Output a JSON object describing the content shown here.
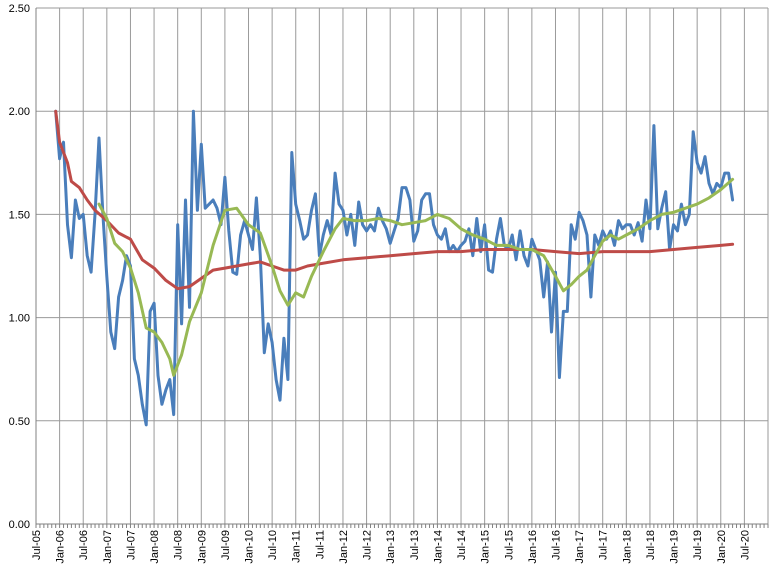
{
  "chart_data": {
    "type": "line",
    "title": "",
    "xlabel": "",
    "ylabel": "",
    "ylim": [
      0,
      2.5
    ],
    "grid": {
      "vertical": true,
      "horizontal": true
    },
    "legend": "none",
    "y_ticks": [
      "0.00",
      "0.50",
      "1.00",
      "1.50",
      "2.00",
      "2.50"
    ],
    "x_range": [
      "Jul-05",
      "Jan-21"
    ],
    "x_ticks": [
      "Jul-05",
      "Jan-06",
      "Jul-06",
      "Jan-07",
      "Jul-07",
      "Jan-08",
      "Jul-08",
      "Jan-09",
      "Jul-09",
      "Jan-10",
      "Jul-10",
      "Jan-11",
      "Jul-11",
      "Jan-12",
      "Jul-12",
      "Jan-13",
      "Jul-13",
      "Jan-14",
      "Jul-14",
      "Jan-15",
      "Jul-15",
      "Jan-16",
      "Jul-16",
      "Jan-17",
      "Jul-17",
      "Jan-18",
      "Jul-18",
      "Jan-19",
      "Jul-19",
      "Jan-20",
      "Jul-20"
    ],
    "series": [
      {
        "color": "#4a7ebb",
        "points": [
          [
            "Dec-05",
            2.0
          ],
          [
            "Jan-06",
            1.77
          ],
          [
            "Feb-06",
            1.85
          ],
          [
            "Mar-06",
            1.45
          ],
          [
            "Apr-06",
            1.29
          ],
          [
            "May-06",
            1.57
          ],
          [
            "Jun-06",
            1.48
          ],
          [
            "Jul-06",
            1.5
          ],
          [
            "Aug-06",
            1.3
          ],
          [
            "Sep-06",
            1.22
          ],
          [
            "Oct-06",
            1.5
          ],
          [
            "Nov-06",
            1.87
          ],
          [
            "Dec-06",
            1.5
          ],
          [
            "Jan-07",
            1.2
          ],
          [
            "Feb-07",
            0.93
          ],
          [
            "Mar-07",
            0.85
          ],
          [
            "Apr-07",
            1.1
          ],
          [
            "May-07",
            1.18
          ],
          [
            "Jun-07",
            1.3
          ],
          [
            "Jul-07",
            1.25
          ],
          [
            "Aug-07",
            0.8
          ],
          [
            "Sep-07",
            0.72
          ],
          [
            "Oct-07",
            0.58
          ],
          [
            "Nov-07",
            0.48
          ],
          [
            "Dec-07",
            1.03
          ],
          [
            "Jan-08",
            1.07
          ],
          [
            "Feb-08",
            0.72
          ],
          [
            "Mar-08",
            0.58
          ],
          [
            "Apr-08",
            0.65
          ],
          [
            "May-08",
            0.7
          ],
          [
            "Jun-08",
            0.53
          ],
          [
            "Jul-08",
            1.45
          ],
          [
            "Aug-08",
            0.97
          ],
          [
            "Sep-08",
            1.57
          ],
          [
            "Oct-08",
            1.05
          ],
          [
            "Nov-08",
            2.0
          ],
          [
            "Dec-08",
            1.52
          ],
          [
            "Jan-09",
            1.84
          ],
          [
            "Feb-09",
            1.53
          ],
          [
            "Mar-09",
            1.55
          ],
          [
            "Apr-09",
            1.57
          ],
          [
            "May-09",
            1.53
          ],
          [
            "Jun-09",
            1.45
          ],
          [
            "Jul-09",
            1.68
          ],
          [
            "Aug-09",
            1.42
          ],
          [
            "Sep-09",
            1.22
          ],
          [
            "Oct-09",
            1.21
          ],
          [
            "Nov-09",
            1.4
          ],
          [
            "Dec-09",
            1.47
          ],
          [
            "Jan-10",
            1.4
          ],
          [
            "Feb-10",
            1.33
          ],
          [
            "Mar-10",
            1.58
          ],
          [
            "Apr-10",
            1.3
          ],
          [
            "May-10",
            0.83
          ],
          [
            "Jun-10",
            0.97
          ],
          [
            "Jul-10",
            0.88
          ],
          [
            "Aug-10",
            0.7
          ],
          [
            "Sep-10",
            0.6
          ],
          [
            "Oct-10",
            0.9
          ],
          [
            "Nov-10",
            0.7
          ],
          [
            "Dec-10",
            1.8
          ],
          [
            "Jan-11",
            1.55
          ],
          [
            "Feb-11",
            1.47
          ],
          [
            "Mar-11",
            1.38
          ],
          [
            "Apr-11",
            1.4
          ],
          [
            "May-11",
            1.52
          ],
          [
            "Jun-11",
            1.6
          ],
          [
            "Jul-11",
            1.3
          ],
          [
            "Aug-11",
            1.4
          ],
          [
            "Sep-11",
            1.47
          ],
          [
            "Oct-11",
            1.4
          ],
          [
            "Nov-11",
            1.7
          ],
          [
            "Dec-11",
            1.55
          ],
          [
            "Jan-12",
            1.52
          ],
          [
            "Feb-12",
            1.4
          ],
          [
            "Mar-12",
            1.5
          ],
          [
            "Apr-12",
            1.35
          ],
          [
            "May-12",
            1.56
          ],
          [
            "Jun-12",
            1.45
          ],
          [
            "Jul-12",
            1.42
          ],
          [
            "Aug-12",
            1.45
          ],
          [
            "Sep-12",
            1.42
          ],
          [
            "Oct-12",
            1.53
          ],
          [
            "Nov-12",
            1.47
          ],
          [
            "Dec-12",
            1.43
          ],
          [
            "Jan-13",
            1.36
          ],
          [
            "Feb-13",
            1.42
          ],
          [
            "Mar-13",
            1.48
          ],
          [
            "Apr-13",
            1.63
          ],
          [
            "May-13",
            1.63
          ],
          [
            "Jun-13",
            1.57
          ],
          [
            "Jul-13",
            1.37
          ],
          [
            "Aug-13",
            1.42
          ],
          [
            "Sep-13",
            1.57
          ],
          [
            "Oct-13",
            1.6
          ],
          [
            "Nov-13",
            1.6
          ],
          [
            "Dec-13",
            1.45
          ],
          [
            "Jan-14",
            1.4
          ],
          [
            "Feb-14",
            1.38
          ],
          [
            "Mar-14",
            1.43
          ],
          [
            "Apr-14",
            1.32
          ],
          [
            "May-14",
            1.35
          ],
          [
            "Jun-14",
            1.32
          ],
          [
            "Jul-14",
            1.35
          ],
          [
            "Aug-14",
            1.37
          ],
          [
            "Sep-14",
            1.43
          ],
          [
            "Oct-14",
            1.3
          ],
          [
            "Nov-14",
            1.48
          ],
          [
            "Dec-14",
            1.32
          ],
          [
            "Jan-15",
            1.45
          ],
          [
            "Feb-15",
            1.23
          ],
          [
            "Mar-15",
            1.22
          ],
          [
            "Apr-15",
            1.38
          ],
          [
            "May-15",
            1.48
          ],
          [
            "Jun-15",
            1.35
          ],
          [
            "Jul-15",
            1.33
          ],
          [
            "Aug-15",
            1.4
          ],
          [
            "Sep-15",
            1.28
          ],
          [
            "Oct-15",
            1.42
          ],
          [
            "Nov-15",
            1.3
          ],
          [
            "Dec-15",
            1.25
          ],
          [
            "Jan-16",
            1.38
          ],
          [
            "Feb-16",
            1.33
          ],
          [
            "Mar-16",
            1.28
          ],
          [
            "Apr-16",
            1.1
          ],
          [
            "May-16",
            1.27
          ],
          [
            "Jun-16",
            0.93
          ],
          [
            "Jul-16",
            1.22
          ],
          [
            "Aug-16",
            0.71
          ],
          [
            "Sep-16",
            1.03
          ],
          [
            "Oct-16",
            1.03
          ],
          [
            "Nov-16",
            1.45
          ],
          [
            "Dec-16",
            1.38
          ],
          [
            "Jan-17",
            1.51
          ],
          [
            "Feb-17",
            1.47
          ],
          [
            "Mar-17",
            1.4
          ],
          [
            "Apr-17",
            1.1
          ],
          [
            "May-17",
            1.4
          ],
          [
            "Jun-17",
            1.35
          ],
          [
            "Jul-17",
            1.42
          ],
          [
            "Aug-17",
            1.38
          ],
          [
            "Sep-17",
            1.42
          ],
          [
            "Oct-17",
            1.35
          ],
          [
            "Nov-17",
            1.47
          ],
          [
            "Dec-17",
            1.43
          ],
          [
            "Jan-18",
            1.45
          ],
          [
            "Feb-18",
            1.45
          ],
          [
            "Mar-18",
            1.4
          ],
          [
            "Apr-18",
            1.46
          ],
          [
            "May-18",
            1.37
          ],
          [
            "Jun-18",
            1.57
          ],
          [
            "Jul-18",
            1.43
          ],
          [
            "Aug-18",
            1.93
          ],
          [
            "Sep-18",
            1.43
          ],
          [
            "Oct-18",
            1.53
          ],
          [
            "Nov-18",
            1.61
          ],
          [
            "Dec-18",
            1.33
          ],
          [
            "Jan-19",
            1.45
          ],
          [
            "Feb-19",
            1.42
          ],
          [
            "Mar-19",
            1.55
          ],
          [
            "Apr-19",
            1.45
          ],
          [
            "May-19",
            1.5
          ],
          [
            "Jun-19",
            1.9
          ],
          [
            "Jul-19",
            1.75
          ],
          [
            "Aug-19",
            1.7
          ],
          [
            "Sep-19",
            1.78
          ],
          [
            "Oct-19",
            1.65
          ],
          [
            "Nov-19",
            1.6
          ],
          [
            "Dec-19",
            1.65
          ],
          [
            "Jan-20",
            1.63
          ],
          [
            "Feb-20",
            1.7
          ],
          [
            "Mar-20",
            1.7
          ],
          [
            "Apr-20",
            1.57
          ]
        ]
      },
      {
        "color": "#be4b48",
        "points": [
          [
            "Dec-05",
            2.0
          ],
          [
            "Jan-06",
            1.85
          ],
          [
            "Mar-06",
            1.75
          ],
          [
            "Apr-06",
            1.66
          ],
          [
            "Jun-06",
            1.63
          ],
          [
            "Aug-06",
            1.57
          ],
          [
            "Oct-06",
            1.52
          ],
          [
            "Jan-07",
            1.47
          ],
          [
            "Apr-07",
            1.41
          ],
          [
            "Jul-07",
            1.38
          ],
          [
            "Oct-07",
            1.28
          ],
          [
            "Jan-08",
            1.24
          ],
          [
            "Apr-08",
            1.18
          ],
          [
            "Jul-08",
            1.14
          ],
          [
            "Oct-08",
            1.15
          ],
          [
            "Jan-09",
            1.19
          ],
          [
            "Apr-09",
            1.23
          ],
          [
            "Jul-09",
            1.24
          ],
          [
            "Oct-09",
            1.25
          ],
          [
            "Jan-10",
            1.26
          ],
          [
            "Apr-10",
            1.27
          ],
          [
            "Jul-10",
            1.25
          ],
          [
            "Oct-10",
            1.23
          ],
          [
            "Jan-11",
            1.23
          ],
          [
            "Apr-11",
            1.25
          ],
          [
            "Jul-11",
            1.26
          ],
          [
            "Jan-12",
            1.28
          ],
          [
            "Jul-12",
            1.29
          ],
          [
            "Jan-13",
            1.3
          ],
          [
            "Jul-13",
            1.31
          ],
          [
            "Jan-14",
            1.32
          ],
          [
            "Jul-14",
            1.32
          ],
          [
            "Jan-15",
            1.33
          ],
          [
            "Jul-15",
            1.33
          ],
          [
            "Jan-16",
            1.33
          ],
          [
            "Jul-16",
            1.32
          ],
          [
            "Jan-17",
            1.31
          ],
          [
            "Jul-17",
            1.32
          ],
          [
            "Jan-18",
            1.32
          ],
          [
            "Jul-18",
            1.32
          ],
          [
            "Jan-19",
            1.33
          ],
          [
            "Jul-19",
            1.34
          ],
          [
            "Jan-20",
            1.35
          ],
          [
            "Apr-20",
            1.355
          ]
        ]
      },
      {
        "color": "#98b954",
        "points": [
          [
            "Nov-06",
            1.55
          ],
          [
            "Jan-07",
            1.48
          ],
          [
            "Mar-07",
            1.36
          ],
          [
            "May-07",
            1.32
          ],
          [
            "Jul-07",
            1.24
          ],
          [
            "Sep-07",
            1.12
          ],
          [
            "Nov-07",
            0.95
          ],
          [
            "Jan-08",
            0.93
          ],
          [
            "Mar-08",
            0.88
          ],
          [
            "May-08",
            0.8
          ],
          [
            "Jun-08",
            0.72
          ],
          [
            "Aug-08",
            0.82
          ],
          [
            "Oct-08",
            0.98
          ],
          [
            "Jan-09",
            1.12
          ],
          [
            "Apr-09",
            1.35
          ],
          [
            "Jul-09",
            1.52
          ],
          [
            "Oct-09",
            1.53
          ],
          [
            "Jan-10",
            1.45
          ],
          [
            "Apr-10",
            1.41
          ],
          [
            "Jul-10",
            1.25
          ],
          [
            "Sep-10",
            1.13
          ],
          [
            "Nov-10",
            1.06
          ],
          [
            "Jan-11",
            1.12
          ],
          [
            "Mar-11",
            1.1
          ],
          [
            "May-11",
            1.2
          ],
          [
            "Aug-11",
            1.32
          ],
          [
            "Nov-11",
            1.43
          ],
          [
            "Jan-12",
            1.48
          ],
          [
            "Apr-12",
            1.47
          ],
          [
            "Jul-12",
            1.47
          ],
          [
            "Oct-12",
            1.48
          ],
          [
            "Jan-13",
            1.47
          ],
          [
            "Apr-13",
            1.45
          ],
          [
            "Jul-13",
            1.46
          ],
          [
            "Oct-13",
            1.47
          ],
          [
            "Jan-14",
            1.5
          ],
          [
            "Apr-14",
            1.48
          ],
          [
            "Jul-14",
            1.43
          ],
          [
            "Oct-14",
            1.4
          ],
          [
            "Jan-15",
            1.38
          ],
          [
            "Apr-15",
            1.35
          ],
          [
            "Jul-15",
            1.35
          ],
          [
            "Oct-15",
            1.33
          ],
          [
            "Jan-16",
            1.33
          ],
          [
            "Apr-16",
            1.3
          ],
          [
            "Jul-16",
            1.2
          ],
          [
            "Sep-16",
            1.13
          ],
          [
            "Nov-16",
            1.16
          ],
          [
            "Jan-17",
            1.2
          ],
          [
            "Mar-17",
            1.23
          ],
          [
            "May-17",
            1.3
          ],
          [
            "Jul-17",
            1.37
          ],
          [
            "Sep-17",
            1.4
          ],
          [
            "Nov-17",
            1.38
          ],
          [
            "Jan-18",
            1.4
          ],
          [
            "Apr-18",
            1.43
          ],
          [
            "Jul-18",
            1.47
          ],
          [
            "Oct-18",
            1.5
          ],
          [
            "Jan-19",
            1.51
          ],
          [
            "Apr-19",
            1.53
          ],
          [
            "Jul-19",
            1.55
          ],
          [
            "Oct-19",
            1.58
          ],
          [
            "Jan-20",
            1.62
          ],
          [
            "Apr-20",
            1.67
          ]
        ]
      }
    ]
  }
}
